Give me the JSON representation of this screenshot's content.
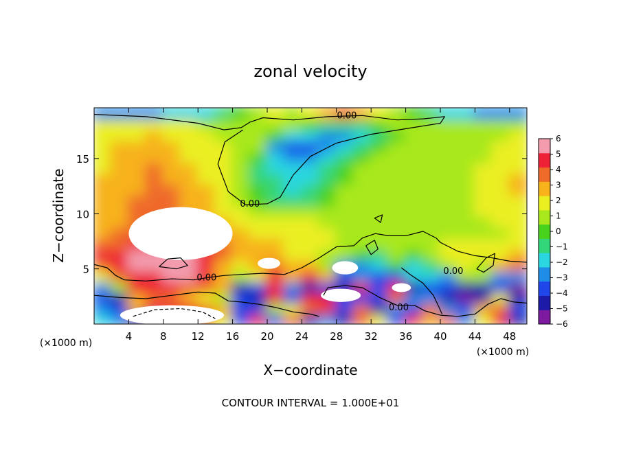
{
  "chart_data": {
    "type": "heatmap",
    "title": "zonal velocity",
    "xlabel": "X−coordinate",
    "ylabel": "Z−coordinate",
    "x_unit_left": "(×1000 m)",
    "x_unit_right": "(×1000 m)",
    "footer": "CONTOUR INTERVAL = 1.000E+01",
    "xlim": [
      0,
      50
    ],
    "ylim": [
      0,
      19.6
    ],
    "x_ticks": [
      4,
      8,
      12,
      16,
      20,
      24,
      28,
      32,
      36,
      40,
      44,
      48
    ],
    "y_ticks": [
      5,
      10,
      15
    ],
    "colorbar": {
      "min": -6,
      "max": 6,
      "ticks": [
        6,
        5,
        4,
        3,
        2,
        1,
        0,
        -1,
        -2,
        -3,
        -4,
        -5,
        -6
      ],
      "tick_labels": [
        "6",
        "5",
        "4",
        "3",
        "2",
        "1",
        "0",
        "−1",
        "−2",
        "−3",
        "−4",
        "−5",
        "−6"
      ]
    },
    "contour_label": "0.00",
    "contour_label_positions": [
      [
        29.2,
        18.9
      ],
      [
        18,
        10.9
      ],
      [
        13,
        4.2
      ],
      [
        41.5,
        4.8
      ],
      [
        35.2,
        1.5
      ]
    ],
    "cells": [
      [
        -2,
        -3,
        -5,
        -3,
        4,
        5,
        4,
        2,
        -4,
        5,
        -4,
        4,
        -5,
        -3,
        -5,
        4,
        2,
        -4,
        5,
        3,
        4,
        -3,
        2,
        5,
        -5
      ],
      [
        -3,
        -4,
        3,
        5,
        5,
        5,
        4,
        3,
        -4,
        -4,
        1,
        2,
        4,
        5,
        -4,
        4,
        -5,
        -3,
        -4,
        4,
        -3,
        -4,
        3,
        4,
        -4
      ],
      [
        -4,
        -5,
        3,
        4,
        4,
        3,
        2,
        1,
        -4,
        -5,
        5,
        -4,
        5,
        5,
        -4,
        -4,
        -4,
        4,
        -3,
        -3,
        -5,
        -6,
        -5,
        2,
        -5
      ],
      [
        -3,
        1,
        5,
        5,
        5,
        4,
        4,
        3,
        -5,
        -4,
        5,
        -3,
        -5,
        -4,
        -5,
        5,
        -4,
        5,
        -5,
        -4,
        -4,
        -5,
        -5,
        -4,
        -6
      ],
      [
        2,
        4,
        5,
        5,
        6,
        6,
        5,
        3,
        1,
        2,
        5,
        3,
        5,
        3,
        -4,
        -3,
        -4,
        -4,
        -2,
        -2,
        -3,
        1,
        1,
        -3,
        -3
      ],
      [
        4,
        5,
        6,
        6,
        6,
        6,
        5,
        3,
        2,
        3,
        4,
        3,
        3,
        1,
        -3,
        -3,
        -2,
        0,
        -2,
        -1,
        1,
        2,
        1,
        3,
        4
      ],
      [
        5,
        5,
        6,
        6,
        6,
        6,
        5,
        4,
        3,
        3,
        3,
        2,
        2,
        1,
        1,
        0,
        -1,
        1,
        0,
        1,
        2,
        2,
        2,
        2,
        3
      ],
      [
        4,
        4,
        5,
        5,
        6,
        6,
        5,
        4,
        3,
        3,
        3,
        2,
        2,
        2,
        1,
        1,
        1,
        1,
        1,
        1,
        2,
        2,
        2,
        2,
        2
      ],
      [
        3,
        4,
        4,
        4,
        4,
        4,
        4,
        3,
        3,
        2,
        2,
        2,
        2,
        2,
        1,
        1,
        1,
        1,
        1,
        1,
        1,
        1,
        1,
        1,
        2
      ],
      [
        3,
        3,
        4,
        4,
        4,
        4,
        3,
        3,
        2,
        2,
        2,
        2,
        2,
        1,
        1,
        1,
        1,
        1,
        1,
        1,
        1,
        1,
        1,
        2,
        2
      ],
      [
        3,
        3,
        4,
        4,
        4,
        3,
        3,
        2,
        2,
        1,
        1,
        1,
        1,
        1,
        1,
        1,
        1,
        1,
        1,
        1,
        1,
        1,
        2,
        2,
        2
      ],
      [
        3,
        3,
        4,
        4,
        4,
        3,
        3,
        2,
        1,
        0,
        -1,
        -1,
        -1,
        0,
        1,
        1,
        1,
        1,
        1,
        1,
        1,
        1,
        2,
        2,
        2
      ],
      [
        3,
        3,
        3,
        4,
        4,
        3,
        3,
        2,
        1,
        0,
        -1,
        -2,
        -1,
        0,
        1,
        1,
        1,
        1,
        1,
        1,
        1,
        1,
        2,
        2,
        3
      ],
      [
        3,
        3,
        3,
        4,
        3,
        3,
        2,
        2,
        1,
        -1,
        -1,
        -2,
        -2,
        -1,
        0,
        1,
        1,
        1,
        1,
        1,
        1,
        1,
        2,
        2,
        3
      ],
      [
        2,
        3,
        3,
        4,
        3,
        3,
        2,
        2,
        1,
        -1,
        -2,
        -2,
        -2,
        -1,
        0,
        1,
        1,
        1,
        1,
        1,
        1,
        1,
        2,
        2,
        2
      ],
      [
        2,
        3,
        3,
        3,
        3,
        2,
        2,
        2,
        1,
        0,
        -2,
        -3,
        -3,
        -2,
        -1,
        0,
        1,
        1,
        1,
        1,
        1,
        1,
        1,
        2,
        2
      ],
      [
        2,
        3,
        3,
        3,
        3,
        2,
        2,
        2,
        1,
        1,
        -3,
        -4,
        -4,
        -3,
        -2,
        -1,
        0,
        1,
        1,
        1,
        1,
        1,
        1,
        2,
        2
      ],
      [
        2,
        2,
        2,
        3,
        2,
        2,
        2,
        1,
        1,
        1,
        0,
        -2,
        -2,
        -3,
        -3,
        -2,
        -1,
        0,
        1,
        1,
        1,
        1,
        1,
        1,
        2
      ],
      [
        2,
        2,
        2,
        2,
        2,
        2,
        1,
        1,
        1,
        1,
        1,
        1,
        0,
        -1,
        -1,
        -1,
        0,
        1,
        1,
        1,
        1,
        1,
        1,
        1,
        1
      ],
      [
        -3,
        -3,
        -3,
        -3,
        -2,
        -2,
        -2,
        -1,
        0,
        1,
        2,
        1,
        2,
        3,
        4,
        3,
        2,
        1,
        0,
        -1,
        -2,
        -2,
        -3,
        -3,
        -3
      ]
    ],
    "saturated_regions": [
      {
        "value": "above_max",
        "center": [
          10,
          8.2
        ],
        "radius": [
          6,
          2.4
        ]
      },
      {
        "value": "above_max",
        "center": [
          9,
          0.8
        ],
        "radius": [
          6,
          0.9
        ]
      },
      {
        "value": "above_max",
        "center": [
          28.5,
          2.6
        ],
        "radius": [
          2.3,
          0.6
        ]
      },
      {
        "value": "above_max",
        "center": [
          20.2,
          5.5
        ],
        "radius": [
          1.3,
          0.5
        ]
      },
      {
        "value": "above_max",
        "center": [
          29,
          5.1
        ],
        "radius": [
          1.5,
          0.6
        ]
      },
      {
        "value": "above_max",
        "center": [
          35.5,
          3.3
        ],
        "radius": [
          1.1,
          0.4
        ]
      }
    ]
  }
}
